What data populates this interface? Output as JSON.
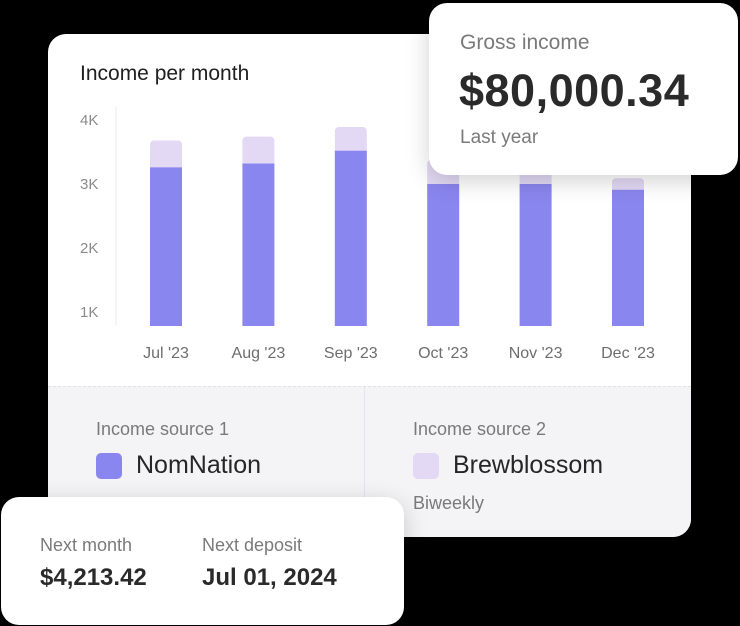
{
  "colors": {
    "primary": "#8a86ef",
    "secondary": "#e3d9f5"
  },
  "chart_data": {
    "type": "bar",
    "title": "Income per month",
    "categories": [
      "Jul '23",
      "Aug '23",
      "Sep '23",
      "Oct '23",
      "Nov '23",
      "Dec '23"
    ],
    "series": [
      {
        "name": "NomNation",
        "values": [
          3260,
          3320,
          3520,
          3000,
          3000,
          2910
        ]
      },
      {
        "name": "Brewblossom",
        "values": [
          420,
          420,
          370,
          380,
          360,
          180
        ]
      }
    ],
    "yticks": [
      "1K",
      "2K",
      "3K",
      "4K"
    ],
    "ylim": [
      1000,
      4000
    ],
    "xlabel": "",
    "ylabel": "",
    "grid": false
  },
  "gross": {
    "label": "Gross income",
    "value": "$80,000.34",
    "period": "Last year"
  },
  "sources": [
    {
      "title": "Income source 1",
      "name": "NomNation",
      "frequency": ""
    },
    {
      "title": "Income source 2",
      "name": "Brewblossom",
      "frequency": "Biweekly"
    }
  ],
  "deposit": {
    "next_month_label": "Next month",
    "next_month_value": "$4,213.42",
    "next_deposit_label": "Next deposit",
    "next_deposit_value": "Jul 01, 2024"
  }
}
